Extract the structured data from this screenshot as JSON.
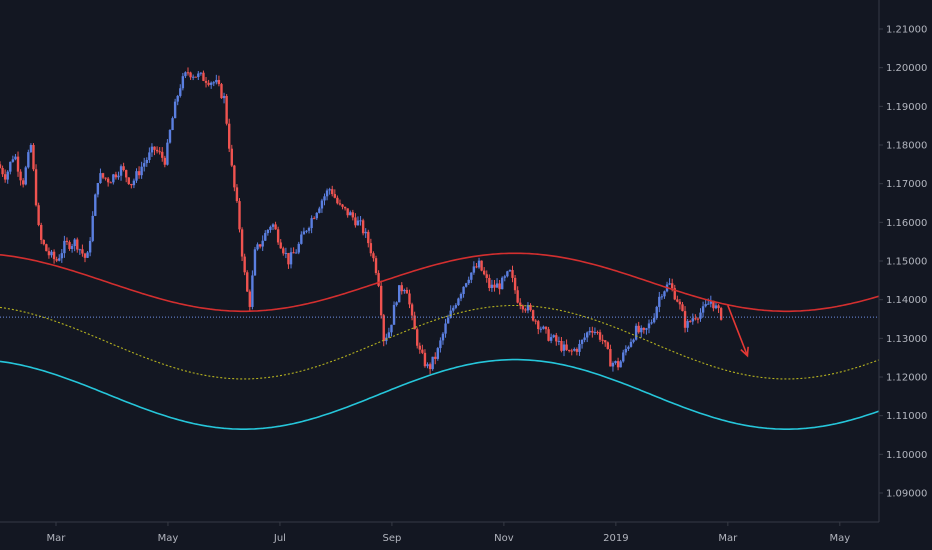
{
  "chart_data": {
    "type": "candlestick",
    "title": "",
    "xlabel": "",
    "ylabel": "",
    "colors": {
      "background": "#131722",
      "up": "#5b7fe0",
      "down": "#ef5350",
      "upper_band": "#d32f2f",
      "mid_band": "#b5b21f",
      "lower_band": "#26c6da",
      "current_price_line": "#6f8fe6",
      "arrow": "#e53935",
      "axis_text": "#b2b5be",
      "axis_line": "#363a45"
    },
    "y_axis": {
      "range": [
        1.0825,
        1.2175
      ],
      "ticks": [
        "1.09000",
        "1.10000",
        "1.11000",
        "1.12000",
        "1.13000",
        "1.14000",
        "1.15000",
        "1.16000",
        "1.17000",
        "1.18000",
        "1.19000",
        "1.20000",
        "1.21000"
      ],
      "current_price": 1.1355,
      "position": "right"
    },
    "x_axis": {
      "months": [
        "Mar",
        "May",
        "Jul",
        "Sep",
        "Nov",
        "2019",
        "Mar",
        "May"
      ],
      "month_index": [
        1,
        3,
        5,
        7,
        9,
        11,
        13,
        15
      ],
      "domain_months": [
        0.0,
        15.7
      ]
    },
    "price_path": [
      [
        0.0,
        1.175
      ],
      [
        0.15,
        1.172
      ],
      [
        0.3,
        1.178
      ],
      [
        0.45,
        1.17
      ],
      [
        0.6,
        1.18
      ],
      [
        0.75,
        1.156
      ],
      [
        0.9,
        1.152
      ],
      [
        1.05,
        1.15
      ],
      [
        1.2,
        1.154
      ],
      [
        1.4,
        1.155
      ],
      [
        1.6,
        1.15
      ],
      [
        1.8,
        1.172
      ],
      [
        2.0,
        1.171
      ],
      [
        2.2,
        1.174
      ],
      [
        2.4,
        1.17
      ],
      [
        2.6,
        1.175
      ],
      [
        2.8,
        1.179
      ],
      [
        3.0,
        1.176
      ],
      [
        3.1,
        1.185
      ],
      [
        3.25,
        1.195
      ],
      [
        3.4,
        1.199
      ],
      [
        3.55,
        1.198
      ],
      [
        3.75,
        1.197
      ],
      [
        3.9,
        1.196
      ],
      [
        4.05,
        1.192
      ],
      [
        4.2,
        1.172
      ],
      [
        4.3,
        1.162
      ],
      [
        4.4,
        1.148
      ],
      [
        4.5,
        1.138
      ],
      [
        4.6,
        1.152
      ],
      [
        4.75,
        1.156
      ],
      [
        4.9,
        1.16
      ],
      [
        5.05,
        1.155
      ],
      [
        5.2,
        1.15
      ],
      [
        5.35,
        1.153
      ],
      [
        5.5,
        1.158
      ],
      [
        5.65,
        1.162
      ],
      [
        5.8,
        1.166
      ],
      [
        5.95,
        1.169
      ],
      [
        6.1,
        1.164
      ],
      [
        6.3,
        1.162
      ],
      [
        6.5,
        1.159
      ],
      [
        6.65,
        1.154
      ],
      [
        6.8,
        1.146
      ],
      [
        6.9,
        1.13
      ],
      [
        7.0,
        1.132
      ],
      [
        7.15,
        1.142
      ],
      [
        7.3,
        1.144
      ],
      [
        7.4,
        1.135
      ],
      [
        7.55,
        1.126
      ],
      [
        7.7,
        1.122
      ],
      [
        7.85,
        1.126
      ],
      [
        8.0,
        1.133
      ],
      [
        8.2,
        1.14
      ],
      [
        8.4,
        1.146
      ],
      [
        8.6,
        1.149
      ],
      [
        8.8,
        1.143
      ],
      [
        9.0,
        1.144
      ],
      [
        9.15,
        1.147
      ],
      [
        9.3,
        1.14
      ],
      [
        9.45,
        1.138
      ],
      [
        9.6,
        1.135
      ],
      [
        9.8,
        1.131
      ],
      [
        10.0,
        1.129
      ],
      [
        10.2,
        1.126
      ],
      [
        10.4,
        1.128
      ],
      [
        10.6,
        1.133
      ],
      [
        10.8,
        1.13
      ],
      [
        10.95,
        1.124
      ],
      [
        11.1,
        1.123
      ],
      [
        11.25,
        1.128
      ],
      [
        11.4,
        1.132
      ],
      [
        11.55,
        1.131
      ],
      [
        11.7,
        1.135
      ],
      [
        11.85,
        1.142
      ],
      [
        12.0,
        1.144
      ],
      [
        12.15,
        1.14
      ],
      [
        12.3,
        1.133
      ],
      [
        12.45,
        1.136
      ],
      [
        12.6,
        1.137
      ],
      [
        12.75,
        1.14
      ],
      [
        12.9,
        1.136
      ]
    ],
    "bands": {
      "upper": {
        "name": "",
        "amplitude": 0.0075,
        "offset": 1.1445,
        "period_months": 9.7,
        "phase_month": 9.2
      },
      "mid": {
        "name": "",
        "amplitude": 0.0095,
        "offset": 1.129,
        "period_months": 9.7,
        "phase_month": 9.2
      },
      "lower": {
        "name": "",
        "amplitude": 0.009,
        "offset": 1.1155,
        "period_months": 9.7,
        "phase_month": 9.2
      }
    },
    "arrow": {
      "from": [
        13.0,
        1.1385
      ],
      "to": [
        13.35,
        1.1255
      ]
    },
    "grid": false,
    "legend": "none"
  }
}
